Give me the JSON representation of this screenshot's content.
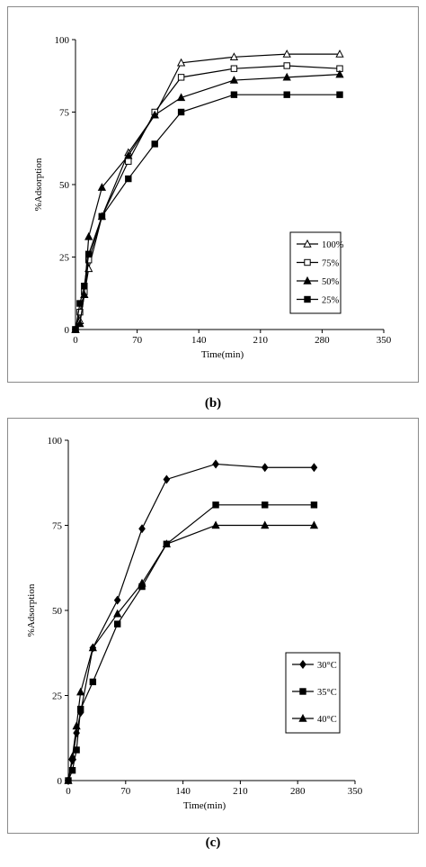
{
  "panels": [
    {
      "label": "(b)"
    },
    {
      "label": "(c)"
    }
  ],
  "chart_data": [
    {
      "type": "line",
      "title": "",
      "xlabel": "Time(min)",
      "ylabel": "%Adsorption",
      "xlim": [
        0,
        350
      ],
      "ylim": [
        0,
        100
      ],
      "xticks": [
        0,
        70,
        140,
        210,
        280,
        350
      ],
      "yticks": [
        0,
        25,
        50,
        75,
        100
      ],
      "grid": false,
      "legend_position": "right",
      "series": [
        {
          "name": "100%",
          "marker": "triangle-open",
          "x": [
            0,
            5,
            10,
            15,
            30,
            60,
            90,
            120,
            180,
            240,
            300
          ],
          "y": [
            0,
            3,
            12,
            21,
            39,
            61,
            74,
            92,
            94,
            95,
            95
          ]
        },
        {
          "name": "75%",
          "marker": "square-open",
          "x": [
            0,
            5,
            10,
            15,
            30,
            60,
            90,
            120,
            180,
            240,
            300
          ],
          "y": [
            0,
            6,
            13,
            24,
            39,
            58,
            75,
            87,
            90,
            91,
            90
          ]
        },
        {
          "name": "50%",
          "marker": "triangle-filled",
          "x": [
            0,
            5,
            10,
            15,
            30,
            60,
            90,
            120,
            180,
            240,
            300
          ],
          "y": [
            0,
            2,
            12,
            32,
            49,
            60,
            74,
            80,
            86,
            87,
            88
          ]
        },
        {
          "name": "25%",
          "marker": "square-filled",
          "x": [
            0,
            5,
            10,
            15,
            30,
            60,
            90,
            120,
            180,
            240,
            300
          ],
          "y": [
            0,
            9,
            15,
            26,
            39,
            52,
            64,
            75,
            81,
            81,
            81
          ]
        }
      ]
    },
    {
      "type": "line",
      "title": "",
      "xlabel": "Time(min)",
      "ylabel": "%Adsorption",
      "xlim": [
        0,
        350
      ],
      "ylim": [
        0,
        100
      ],
      "xticks": [
        0,
        70,
        140,
        210,
        280,
        350
      ],
      "yticks": [
        0,
        25,
        50,
        75,
        100
      ],
      "grid": false,
      "legend_position": "right",
      "series": [
        {
          "name": "30°C",
          "marker": "diamond-filled",
          "x": [
            0,
            5,
            10,
            15,
            30,
            60,
            90,
            120,
            180,
            240,
            300
          ],
          "y": [
            0,
            6,
            14,
            20,
            39,
            53,
            74,
            88.5,
            93,
            92,
            92
          ]
        },
        {
          "name": "35°C",
          "marker": "square-filled",
          "x": [
            0,
            5,
            10,
            15,
            30,
            60,
            90,
            120,
            180,
            240,
            300
          ],
          "y": [
            0,
            3,
            9,
            21,
            29,
            46,
            57,
            69.5,
            81,
            81,
            81
          ]
        },
        {
          "name": "40°C",
          "marker": "triangle-filled",
          "x": [
            0,
            5,
            10,
            15,
            30,
            60,
            90,
            120,
            180,
            240,
            300
          ],
          "y": [
            0,
            7,
            16,
            26,
            39,
            49,
            58,
            69.5,
            75,
            75,
            75
          ]
        }
      ]
    }
  ]
}
